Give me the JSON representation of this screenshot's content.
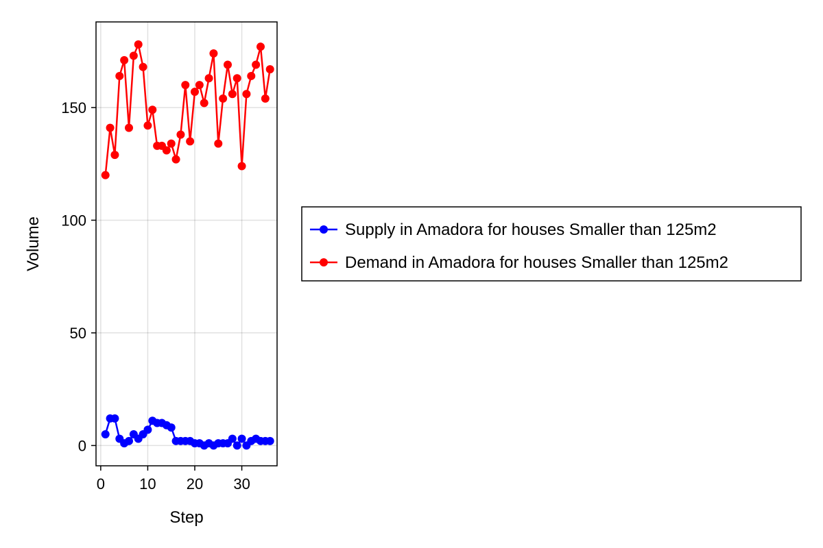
{
  "chart_data": {
    "type": "line",
    "xlabel": "Step",
    "ylabel": "Volume",
    "xlim": [
      -1,
      37.5
    ],
    "ylim": [
      -9,
      188
    ],
    "xticks": [
      0,
      10,
      20,
      30
    ],
    "yticks": [
      0,
      50,
      100,
      150
    ],
    "grid": true,
    "legend_position": "right",
    "x": [
      1,
      2,
      3,
      4,
      5,
      6,
      7,
      8,
      9,
      10,
      11,
      12,
      13,
      14,
      15,
      16,
      17,
      18,
      19,
      20,
      21,
      22,
      23,
      24,
      25,
      26,
      27,
      28,
      29,
      30,
      31,
      32,
      33,
      34,
      35,
      36
    ],
    "series": [
      {
        "name": "Supply in Amadora for houses Smaller than 125m2",
        "color": "#0000ff",
        "values": [
          5,
          12,
          12,
          3,
          1,
          2,
          5,
          3,
          5,
          7,
          11,
          10,
          10,
          9,
          8,
          2,
          2,
          2,
          2,
          1,
          1,
          0,
          1,
          0,
          1,
          1,
          1,
          3,
          0,
          3,
          0,
          2,
          3,
          2,
          2,
          2
        ]
      },
      {
        "name": "Demand in Amadora for houses Smaller than 125m2",
        "color": "#ff0000",
        "values": [
          120,
          141,
          129,
          164,
          171,
          141,
          173,
          178,
          168,
          142,
          149,
          133,
          133,
          131,
          134,
          127,
          138,
          160,
          135,
          157,
          160,
          152,
          163,
          174,
          134,
          154,
          169,
          156,
          163,
          124,
          156,
          164,
          169,
          177,
          154,
          167
        ]
      }
    ]
  }
}
